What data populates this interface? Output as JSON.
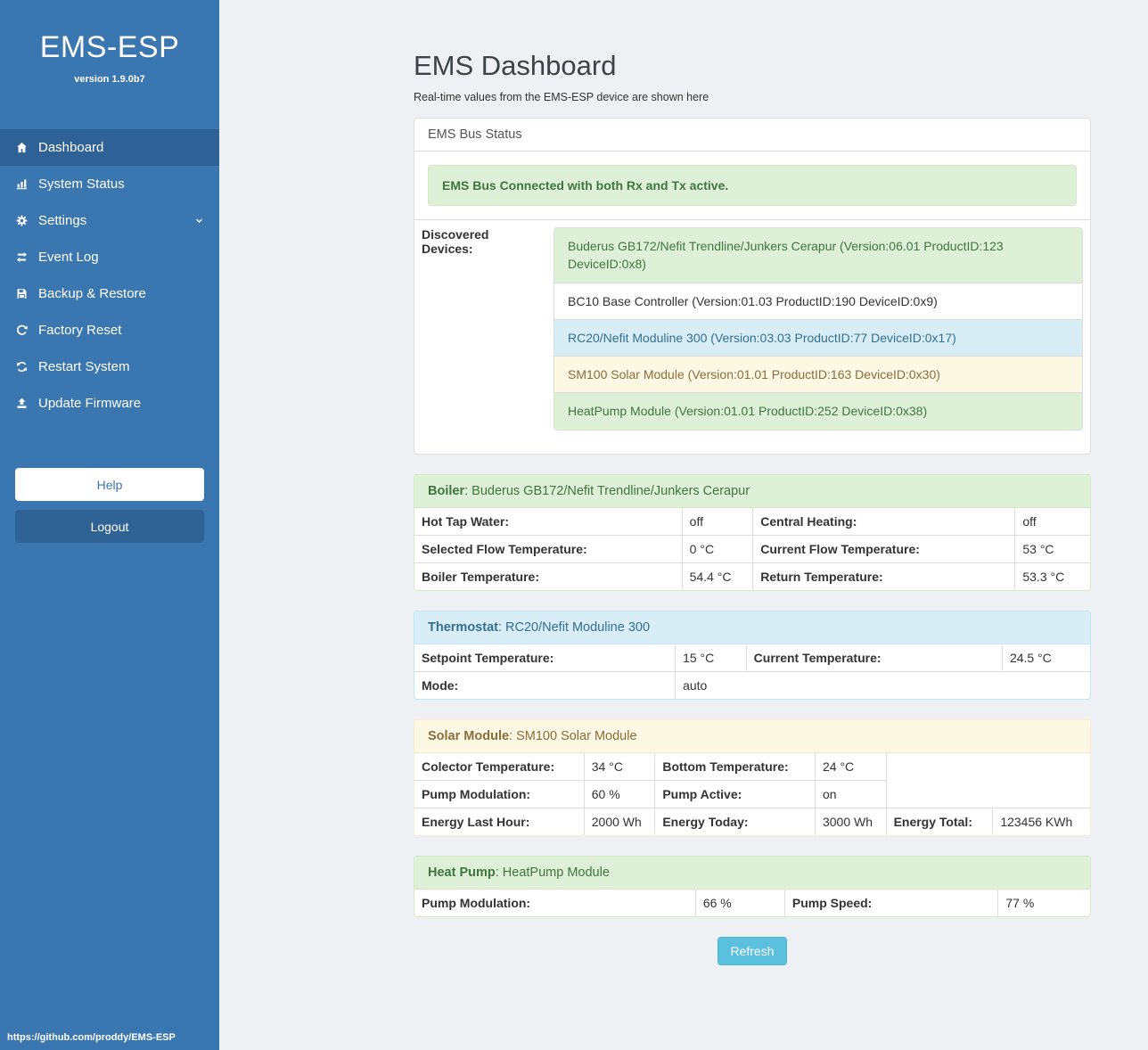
{
  "sidebar": {
    "title": "EMS-ESP",
    "version": "version 1.9.0b7",
    "nav": [
      {
        "label": "Dashboard",
        "icon": "home-icon",
        "active": true
      },
      {
        "label": "System Status",
        "icon": "chart-icon"
      },
      {
        "label": "Settings",
        "icon": "gear-icon",
        "expandable": true
      },
      {
        "label": "Event Log",
        "icon": "exchange-icon"
      },
      {
        "label": "Backup & Restore",
        "icon": "save-icon"
      },
      {
        "label": "Factory Reset",
        "icon": "reset-icon"
      },
      {
        "label": "Restart System",
        "icon": "restart-icon"
      },
      {
        "label": "Update Firmware",
        "icon": "upload-icon"
      }
    ],
    "help_label": "Help",
    "logout_label": "Logout",
    "footer_link": "https://github.com/proddy/EMS-ESP"
  },
  "main": {
    "title": "EMS Dashboard",
    "subtitle": "Real-time values from the EMS-ESP device are shown here",
    "bus_status_panel": {
      "header": "EMS Bus Status",
      "alert": "EMS Bus Connected with both Rx and Tx active.",
      "devices_label": "Discovered Devices:",
      "devices": [
        {
          "text": "Buderus GB172/Nefit Trendline/Junkers Cerapur (Version:06.01 ProductID:123 DeviceID:0x8)",
          "style": "success"
        },
        {
          "text": "BC10 Base Controller (Version:01.03 ProductID:190 DeviceID:0x9)",
          "style": "default"
        },
        {
          "text": "RC20/Nefit Moduline 300 (Version:03.03 ProductID:77 DeviceID:0x17)",
          "style": "info"
        },
        {
          "text": "SM100 Solar Module (Version:01.01 ProductID:163 DeviceID:0x30)",
          "style": "warning"
        },
        {
          "text": "HeatPump Module (Version:01.01 ProductID:252 DeviceID:0x38)",
          "style": "success"
        }
      ]
    },
    "device_panels": [
      {
        "id": "boiler",
        "style": "success",
        "title": "Boiler",
        "device": ": Buderus GB172/Nefit Trendline/Junkers Cerapur",
        "rows": [
          [
            {
              "text": "Hot Tap Water:",
              "header": true
            },
            {
              "text": "off"
            },
            {
              "text": "Central Heating:",
              "header": true
            },
            {
              "text": "off"
            }
          ],
          [
            {
              "text": "Selected Flow Temperature:",
              "header": true
            },
            {
              "text": "0 °C"
            },
            {
              "text": "Current Flow Temperature:",
              "header": true
            },
            {
              "text": "53 °C"
            }
          ],
          [
            {
              "text": "Boiler Temperature:",
              "header": true
            },
            {
              "text": "54.4 °C"
            },
            {
              "text": "Return Temperature:",
              "header": true
            },
            {
              "text": "53.3 °C"
            }
          ]
        ]
      },
      {
        "id": "thermostat",
        "style": "info",
        "title": "Thermostat",
        "device": ": RC20/Nefit Moduline 300",
        "rows": [
          [
            {
              "text": "Setpoint Temperature:",
              "header": true
            },
            {
              "text": "15 °C"
            },
            {
              "text": "Current Temperature:",
              "header": true
            },
            {
              "text": "24.5 °C"
            }
          ],
          [
            {
              "text": "Mode:",
              "header": true
            },
            {
              "text": "auto",
              "colspan": 3
            }
          ]
        ]
      },
      {
        "id": "solar",
        "style": "warning",
        "title": "Solar Module",
        "device": ": SM100 Solar Module",
        "rows": [
          [
            {
              "text": "Colector Temperature:",
              "header": true
            },
            {
              "text": "34 °C"
            },
            {
              "text": "Bottom Temperature:",
              "header": true
            },
            {
              "text": "24 °C"
            },
            {
              "text": "",
              "colspan": 2,
              "rowspan": 2
            }
          ],
          [
            {
              "text": "Pump Modulation:",
              "header": true
            },
            {
              "text": "60 %"
            },
            {
              "text": "Pump Active:",
              "header": true
            },
            {
              "text": "on"
            }
          ],
          [
            {
              "text": "Energy Last Hour:",
              "header": true
            },
            {
              "text": "2000 Wh"
            },
            {
              "text": "Energy Today:",
              "header": true
            },
            {
              "text": "3000 Wh"
            },
            {
              "text": "Energy Total:",
              "header": true
            },
            {
              "text": "123456 KWh"
            }
          ]
        ]
      },
      {
        "id": "heatpump",
        "style": "success",
        "title": "Heat Pump",
        "device": ": HeatPump Module",
        "rows": [
          [
            {
              "text": "Pump Modulation:",
              "header": true
            },
            {
              "text": "66 %"
            },
            {
              "text": "Pump Speed:",
              "header": true
            },
            {
              "text": "77 %"
            }
          ]
        ]
      }
    ],
    "refresh_label": "Refresh"
  },
  "colors": {
    "sidebar_bg": "#3a76b0",
    "sidebar_active_bg": "#2e6195",
    "page_bg": "#eef0f4",
    "success_bg": "#dff0d8",
    "success_border": "#d6e9c6",
    "success_text": "#3c763d",
    "info_bg": "#d9edf7",
    "info_border": "#bce8f1",
    "info_text": "#31708f",
    "warning_bg": "#fcf8e3",
    "warning_border": "#faebcc",
    "warning_text": "#8a6d3b",
    "refresh_bg": "#5bc0de"
  }
}
